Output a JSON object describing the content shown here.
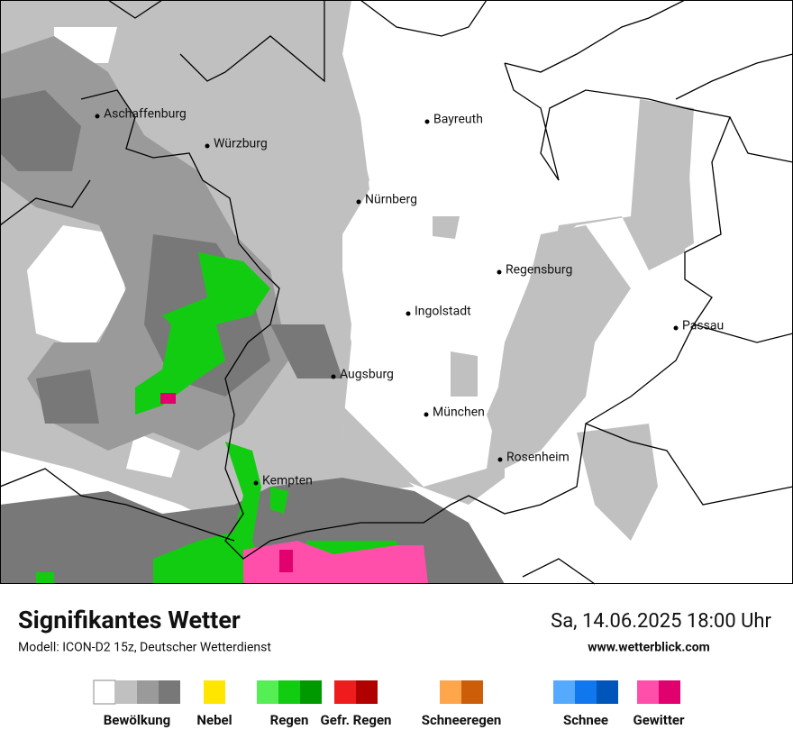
{
  "map": {
    "cities": [
      {
        "name": "Aschaffenburg"
      },
      {
        "name": "Würzburg"
      },
      {
        "name": "Bayreuth"
      },
      {
        "name": "Nürnberg"
      },
      {
        "name": "Regensburg"
      },
      {
        "name": "Ingolstadt"
      },
      {
        "name": "Passau"
      },
      {
        "name": "Augsburg"
      },
      {
        "name": "München"
      },
      {
        "name": "Rosenheim"
      },
      {
        "name": "Kempten"
      }
    ]
  },
  "footer": {
    "title": "Signifikantes Wetter",
    "subtitle": "Modell: ICON-D2 15z, Deutscher Wetterdienst",
    "datetime": "Sa, 14.06.2025 18:00 Uhr",
    "url": "www.wetterblick.com"
  },
  "legend": [
    {
      "label": "Bewölkung",
      "colors": [
        "#ffffff",
        "#c0c0c0",
        "#9a9a9a",
        "#787878"
      ]
    },
    {
      "label": "Nebel",
      "colors": [
        "#ffe600"
      ]
    },
    {
      "label": "Regen",
      "colors": [
        "#55ee55",
        "#11cc11",
        "#009900"
      ]
    },
    {
      "label": "Gefr. Regen",
      "colors": [
        "#ee1c1c",
        "#b00000"
      ]
    },
    {
      "label": "Schneeregen",
      "colors": [
        "#ffa64d",
        "#cc5e0a"
      ]
    },
    {
      "label": "Schnee",
      "colors": [
        "#55aaff",
        "#1177ee",
        "#0055bb"
      ]
    },
    {
      "label": "Gewitter",
      "colors": [
        "#ff4faa",
        "#e0006e"
      ]
    }
  ]
}
